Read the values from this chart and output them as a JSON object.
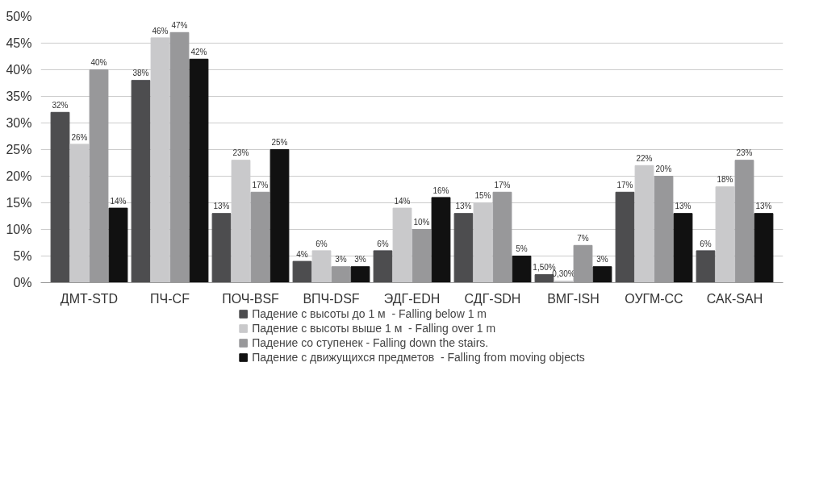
{
  "chart_data": {
    "type": "bar",
    "categories": [
      "ДМТ-STD",
      "ПЧ-CF",
      "ПОЧ-BSF",
      "ВПЧ-DSF",
      "ЭДГ-EDH",
      "СДГ-SDH",
      "ВМГ-ISH",
      "ОУГМ-CC",
      "САК-SAH"
    ],
    "series": [
      {
        "name": "Падение с высоты до 1 м  - Falling below 1 m",
        "color": "#4d4d4f",
        "values": [
          32,
          38,
          13,
          4,
          6,
          13,
          1.5,
          17,
          6
        ],
        "value_labels": [
          "32%",
          "38%",
          "13%",
          "4%",
          "6%",
          "13%",
          "1,50%",
          "17%",
          "6%"
        ]
      },
      {
        "name": "Падение с высоты выше 1 м  - Falling over 1 m",
        "color": "#c9c9cb",
        "values": [
          26,
          46,
          23,
          6,
          14,
          15,
          0.3,
          22,
          18
        ],
        "value_labels": [
          "26%",
          "46%",
          "23%",
          "6%",
          "14%",
          "15%",
          "0,30%",
          "22%",
          "18%"
        ]
      },
      {
        "name": "Падение со ступенек - Falling down the stairs.",
        "color": "#98989a",
        "values": [
          40,
          47,
          17,
          3,
          10,
          17,
          7,
          20,
          23
        ],
        "value_labels": [
          "40%",
          "47%",
          "17%",
          "3%",
          "10%",
          "17%",
          "7%",
          "20%",
          "23%"
        ]
      },
      {
        "name": "Падение с движущихся предметов  - Falling from moving objects",
        "color": "#111111",
        "values": [
          14,
          42,
          25,
          3,
          16,
          5,
          3,
          13,
          13
        ],
        "value_labels": [
          "14%",
          "42%",
          "25%",
          "3%",
          "16%",
          "5%",
          "3%",
          "13%",
          "13%"
        ]
      }
    ],
    "ylim": [
      0,
      50
    ],
    "yticks": [
      {
        "value": 0,
        "label": "0%"
      },
      {
        "value": 5,
        "label": "5%"
      },
      {
        "value": 10,
        "label": "10%"
      },
      {
        "value": 15,
        "label": "15%"
      },
      {
        "value": 20,
        "label": "20%"
      },
      {
        "value": 25,
        "label": "25%"
      },
      {
        "value": 30,
        "label": "30%"
      },
      {
        "value": 35,
        "label": "35%"
      },
      {
        "value": 40,
        "label": "40%"
      },
      {
        "value": 45,
        "label": "45%"
      },
      {
        "value": 50,
        "label": "50%"
      }
    ],
    "grid": "y",
    "legend": "bottom"
  }
}
